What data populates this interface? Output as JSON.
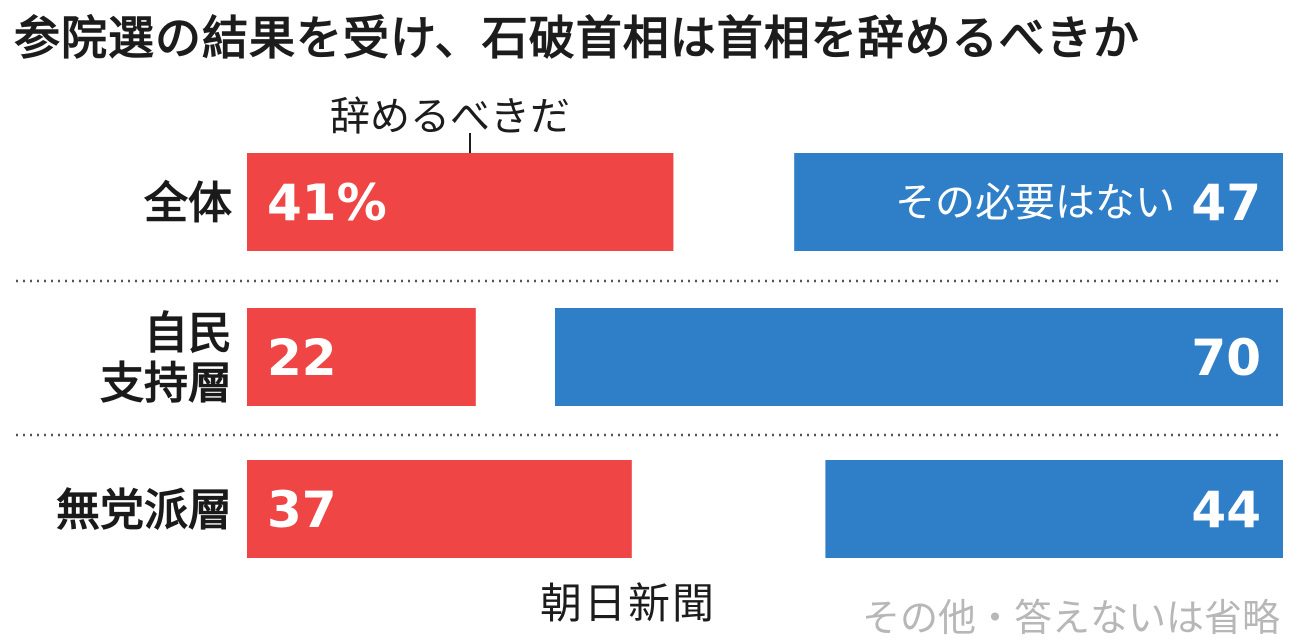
{
  "chart_data": {
    "type": "bar",
    "orientation": "horizontal",
    "title": "参院選の結果を受け、石破首相は首相を辞めるべきか",
    "categories": [
      [
        "全体"
      ],
      [
        "自民",
        "支持層"
      ],
      [
        "無党派層"
      ]
    ],
    "series": [
      {
        "name": "辞めるべきだ",
        "color": "#f04545",
        "values": [
          41,
          22,
          37
        ],
        "labels": [
          "41%",
          "22",
          "37"
        ]
      },
      {
        "name": "その必要はない",
        "color": "#2f7ec8",
        "values": [
          47,
          70,
          44
        ],
        "labels": [
          "47",
          "70",
          "44"
        ]
      }
    ],
    "layout_note": "red bars grow rightward from left edge; blue bars are right-aligned",
    "source": "朝日新聞",
    "note": "その他・答えないは省略",
    "grid": false,
    "legend": "inline"
  },
  "colors": {
    "red": "#f04545",
    "blue": "#2f7ec8",
    "divider": "#555555",
    "note": "#b7b7b7"
  }
}
